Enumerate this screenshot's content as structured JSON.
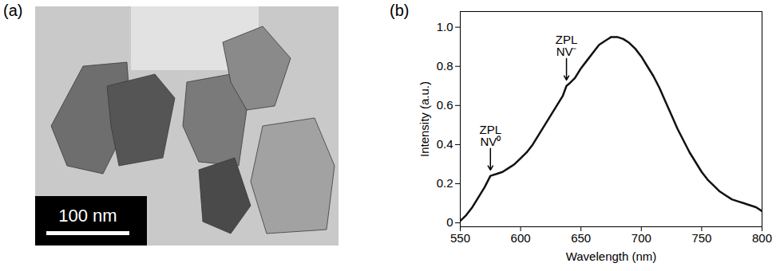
{
  "image_panel": {
    "label": "(a)",
    "scale_bar_label": "100 nm"
  },
  "chart_data": {
    "type": "line",
    "panel_label": "(b)",
    "x_label": "Wavelength (nm)",
    "y_label": "Intensity (a.u.)",
    "xlim": [
      550,
      800
    ],
    "xticks": [
      550,
      600,
      650,
      700,
      750,
      800
    ],
    "ylim": [
      -0.02,
      1.08
    ],
    "yticks": [
      0,
      0.2,
      0.4,
      0.6,
      0.8,
      {
        "value": 1,
        "label": "1.0"
      }
    ],
    "color": "#111111",
    "x": [
      550,
      555,
      560,
      565,
      570,
      575,
      580,
      585,
      590,
      595,
      600,
      605,
      610,
      615,
      620,
      625,
      630,
      635,
      638,
      640,
      645,
      650,
      655,
      660,
      665,
      670,
      675,
      680,
      685,
      690,
      695,
      700,
      705,
      710,
      715,
      720,
      725,
      730,
      735,
      740,
      745,
      750,
      755,
      760,
      765,
      770,
      775,
      780,
      785,
      790,
      795,
      800
    ],
    "values": [
      0.01,
      0.04,
      0.08,
      0.13,
      0.18,
      0.24,
      0.25,
      0.26,
      0.28,
      0.3,
      0.33,
      0.36,
      0.4,
      0.45,
      0.5,
      0.55,
      0.6,
      0.65,
      0.7,
      0.71,
      0.74,
      0.79,
      0.83,
      0.87,
      0.91,
      0.93,
      0.95,
      0.95,
      0.94,
      0.92,
      0.89,
      0.85,
      0.8,
      0.75,
      0.69,
      0.62,
      0.55,
      0.48,
      0.42,
      0.36,
      0.31,
      0.26,
      0.22,
      0.19,
      0.16,
      0.14,
      0.12,
      0.11,
      0.1,
      0.09,
      0.08,
      0.06
    ],
    "annotations": [
      {
        "lines": [
          "ZPL",
          "NV⁰"
        ],
        "x": 575,
        "y": 0.27
      },
      {
        "lines": [
          "ZPL",
          "NV⁻"
        ],
        "x": 638,
        "y": 0.73
      }
    ]
  }
}
